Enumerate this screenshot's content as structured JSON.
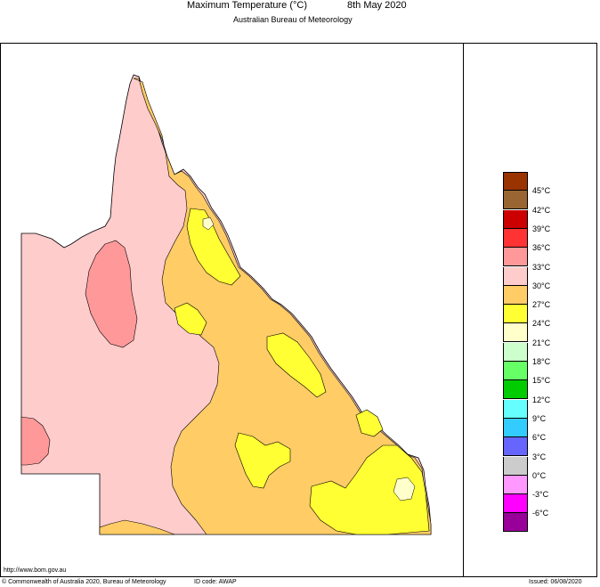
{
  "title": {
    "main": "Maximum Temperature (°C)",
    "date": "8th May 2020",
    "subtitle": "Australian Bureau of Meteorology"
  },
  "legend": {
    "labels": [
      "45°C",
      "42°C",
      "39°C",
      "36°C",
      "33°C",
      "30°C",
      "27°C",
      "24°C",
      "21°C",
      "18°C",
      "15°C",
      "12°C",
      "9°C",
      "6°C",
      "3°C",
      "0°C",
      "-3°C",
      "-6°C"
    ],
    "colors": [
      "#993300",
      "#996633",
      "#cc0000",
      "#ff3333",
      "#ff9999",
      "#ffcccc",
      "#ffcc66",
      "#ffff33",
      "#ffffcc",
      "#ccffcc",
      "#66ff66",
      "#00cc00",
      "#66ffff",
      "#33ccff",
      "#6666ff",
      "#cccccc",
      "#ff99ff",
      "#ff00ff",
      "#990099"
    ]
  },
  "map_colors": {
    "zone_33_36": "#ffcccc",
    "zone_30_33": "#ffcc66",
    "zone_27_30": "#ffff33",
    "zone_36_39": "#ff9999",
    "zone_24_27": "#ffffcc"
  },
  "footer": {
    "url": "http://www.bom.gov.au",
    "copyright": "© Commonwealth of Australia 2020, Bureau of Meteorology",
    "id_code": "ID code: AWAP",
    "issued": "Issued: 06/08/2020"
  }
}
